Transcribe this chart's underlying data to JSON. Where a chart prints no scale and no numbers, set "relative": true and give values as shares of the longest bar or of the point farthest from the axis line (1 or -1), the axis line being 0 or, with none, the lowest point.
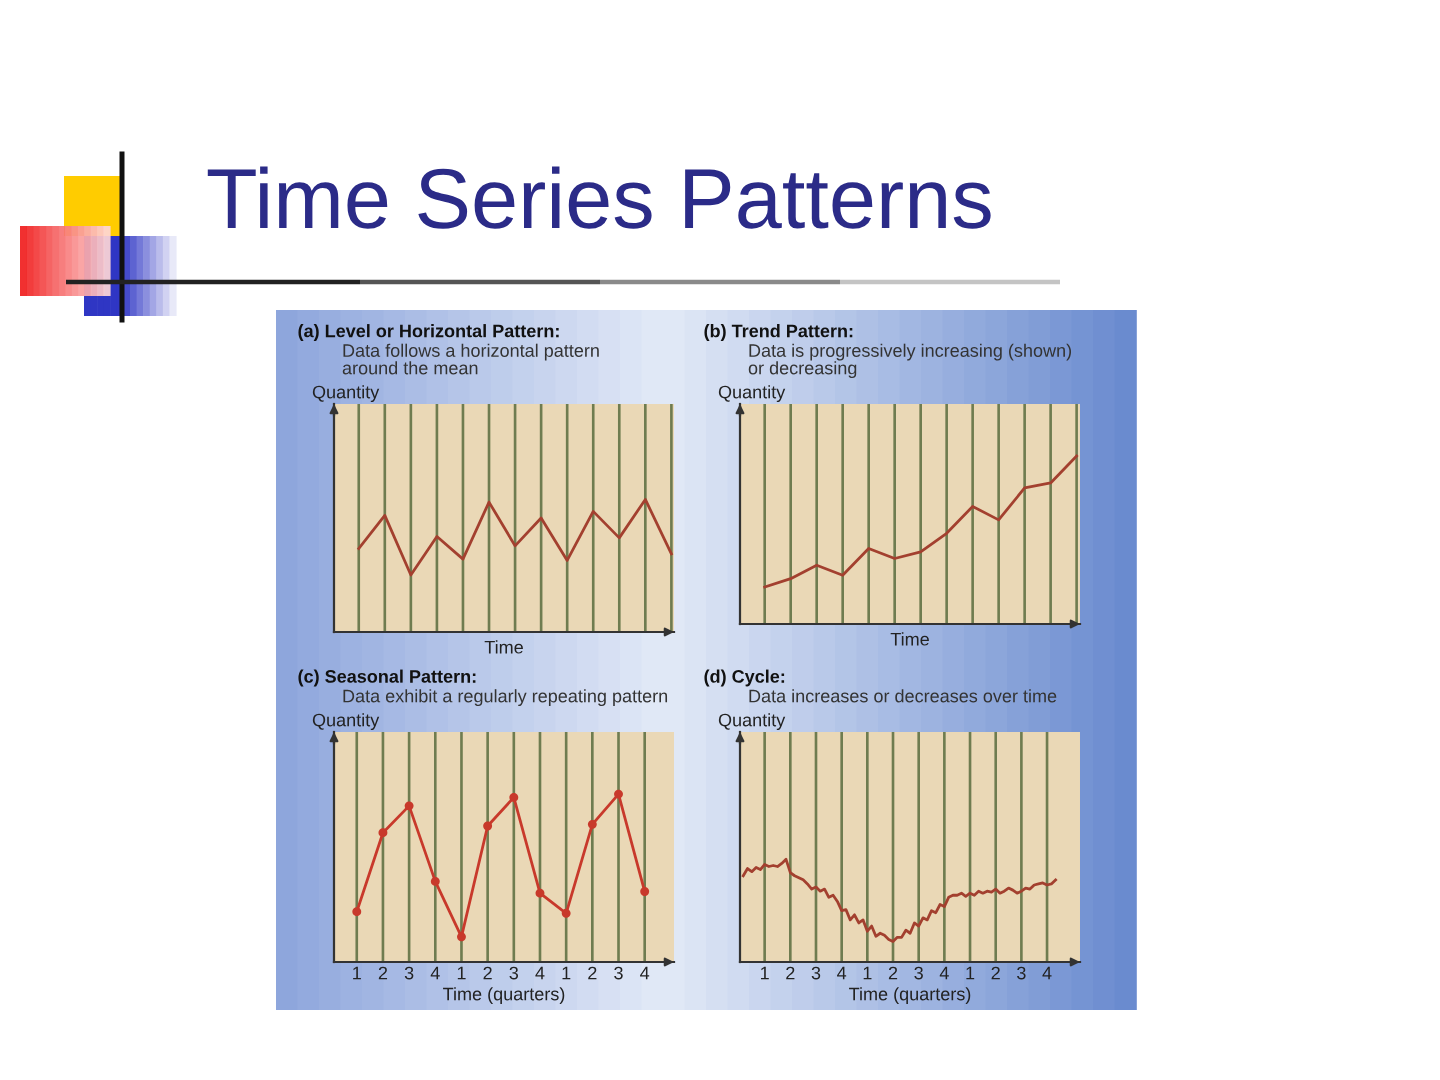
{
  "chart_data": [
    {
      "type": "other",
      "title": "Time Series Patterns"
    },
    {
      "type": "line",
      "title": "(a) Level or Horizontal Pattern:",
      "subtitle": "Data follows a horizontal pattern\naround the mean",
      "ylabel": "Quantity",
      "xlabel": "Time",
      "relative": true,
      "grid": "x",
      "categories": [
        null,
        null,
        null,
        null,
        null,
        null,
        null,
        null,
        null,
        null,
        null,
        null,
        null
      ],
      "series": [
        {
          "color": "#a3402f",
          "values": [
            0.63,
            0.88,
            0.43,
            0.72,
            0.55,
            0.98,
            0.65,
            0.86,
            0.54,
            0.91,
            0.71,
            1.0,
            0.59
          ]
        }
      ]
    },
    {
      "type": "line",
      "title": "(b) Trend Pattern:",
      "subtitle": "Data is progressively increasing (shown)\nor decreasing",
      "ylabel": "Quantity",
      "xlabel": "Time",
      "relative": true,
      "grid": "x",
      "categories": [
        null,
        null,
        null,
        null,
        null,
        null,
        null,
        null,
        null,
        null,
        null,
        null,
        null
      ],
      "series": [
        {
          "color": "#a3402f",
          "values": [
            0.22,
            0.27,
            0.35,
            0.29,
            0.45,
            0.39,
            0.43,
            0.54,
            0.7,
            0.62,
            0.81,
            0.84,
            1.0
          ]
        }
      ]
    },
    {
      "type": "line",
      "title": "(c) Seasonal Pattern:",
      "subtitle": "Data exhibit a regularly repeating pattern",
      "ylabel": "Quantity",
      "xlabel": "Time (quarters)",
      "relative": true,
      "grid": "x",
      "marker": "circle",
      "categories": [
        "1",
        "2",
        "3",
        "4",
        "1",
        "2",
        "3",
        "4",
        "1",
        "2",
        "3",
        "4"
      ],
      "series": [
        {
          "color": "#c8392b",
          "values": [
            0.3,
            0.77,
            0.93,
            0.48,
            0.15,
            0.81,
            0.98,
            0.41,
            0.29,
            0.82,
            1.0,
            0.42
          ]
        }
      ]
    },
    {
      "type": "line",
      "title": "(d) Cycle:",
      "subtitle": "Data increases or decreases over time",
      "ylabel": "Quantity",
      "xlabel": "Time (quarters)",
      "relative": true,
      "grid": "x",
      "categories": [
        null,
        null,
        null,
        null,
        null,
        "1",
        null,
        null,
        null,
        null,
        null,
        "2",
        null,
        null,
        null,
        null,
        null,
        "3",
        null,
        null,
        null,
        null,
        null,
        "4",
        null,
        null,
        null,
        null,
        null,
        "1",
        null,
        null,
        null,
        null,
        null,
        "2",
        null,
        null,
        null,
        null,
        null,
        "3",
        null,
        null,
        null,
        null,
        null,
        "4",
        null,
        null,
        null,
        null,
        null,
        "1",
        null,
        null,
        null,
        null,
        null,
        "2",
        null,
        null,
        null,
        null,
        null,
        "3",
        null,
        null,
        null,
        null,
        null,
        "4",
        null,
        null
      ],
      "series": [
        {
          "color": "#a3402f",
          "values": [
            0.84,
            0.91,
            0.88,
            0.92,
            0.9,
            0.95,
            0.93,
            0.94,
            0.93,
            0.96,
            1.0,
            0.87,
            0.84,
            0.82,
            0.8,
            0.76,
            0.71,
            0.73,
            0.69,
            0.71,
            0.63,
            0.65,
            0.59,
            0.5,
            0.51,
            0.41,
            0.46,
            0.38,
            0.41,
            0.3,
            0.35,
            0.25,
            0.28,
            0.26,
            0.22,
            0.2,
            0.24,
            0.24,
            0.31,
            0.28,
            0.38,
            0.35,
            0.43,
            0.41,
            0.5,
            0.48,
            0.56,
            0.54,
            0.63,
            0.65,
            0.65,
            0.67,
            0.64,
            0.67,
            0.65,
            0.69,
            0.67,
            0.69,
            0.68,
            0.71,
            0.67,
            0.69,
            0.72,
            0.7,
            0.67,
            0.69,
            0.72,
            0.71,
            0.75,
            0.76,
            0.77,
            0.75,
            0.76,
            0.8
          ]
        }
      ]
    }
  ]
}
